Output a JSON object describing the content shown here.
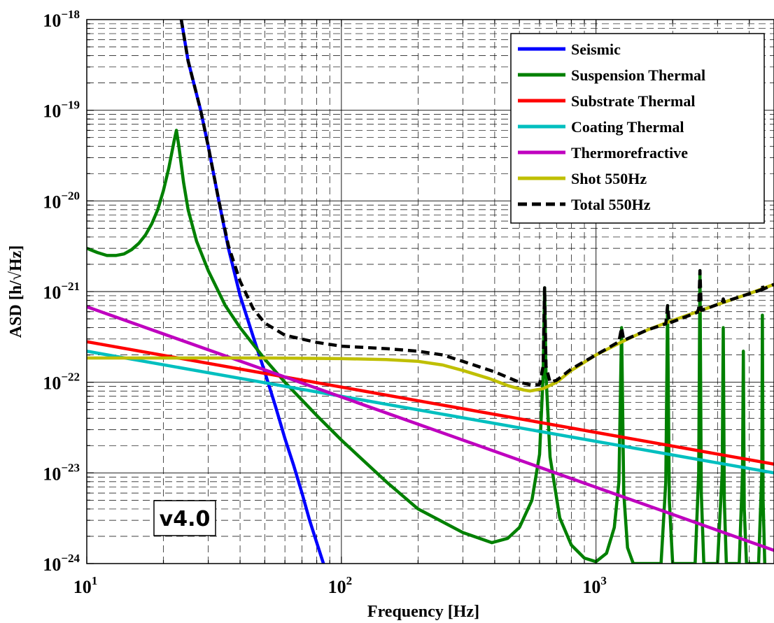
{
  "chart_data": {
    "type": "line",
    "xlabel": "Frequency [Hz]",
    "ylabel": "ASD [h/√Hz]",
    "xscale": "log",
    "yscale": "log",
    "xlim": [
      10,
      5000
    ],
    "ylim": [
      1e-24,
      1e-18
    ],
    "grid": true,
    "legend_position": "top-right",
    "x_tick_labels": [
      {
        "value": 10,
        "base": "10",
        "exp": "1"
      },
      {
        "value": 100,
        "base": "10",
        "exp": "2"
      },
      {
        "value": 1000,
        "base": "10",
        "exp": "3"
      }
    ],
    "y_tick_labels": [
      {
        "value": 1e-24,
        "base": "10",
        "exp": "−24"
      },
      {
        "value": 1e-23,
        "base": "10",
        "exp": "−23"
      },
      {
        "value": 1e-22,
        "base": "10",
        "exp": "−22"
      },
      {
        "value": 1e-21,
        "base": "10",
        "exp": "−21"
      },
      {
        "value": 1e-20,
        "base": "10",
        "exp": "−20"
      },
      {
        "value": 1e-19,
        "base": "10",
        "exp": "−19"
      },
      {
        "value": 1e-18,
        "base": "10",
        "exp": "−18"
      }
    ],
    "annotation": "v4.0",
    "series": [
      {
        "name": "Seismic",
        "color": "#0000ff",
        "dash": false,
        "points": [
          [
            23.5,
            1e-18
          ],
          [
            25,
            3.5e-19
          ],
          [
            28,
            1e-19
          ],
          [
            30,
            4e-20
          ],
          [
            33,
            1e-20
          ],
          [
            36,
            3e-21
          ],
          [
            40,
            9e-22
          ],
          [
            45,
            3.2e-22
          ],
          [
            50,
            1.3e-22
          ],
          [
            55,
            5.5e-23
          ],
          [
            60,
            2.4e-23
          ],
          [
            65,
            1.2e-23
          ],
          [
            70,
            6e-24
          ],
          [
            75,
            3e-24
          ],
          [
            80,
            1.7e-24
          ],
          [
            85,
            1e-24
          ]
        ]
      },
      {
        "name": "Suspension Thermal",
        "color": "#008000",
        "dash": false,
        "points": [
          [
            10,
            3e-21
          ],
          [
            11,
            2.7e-21
          ],
          [
            12,
            2.5e-21
          ],
          [
            13,
            2.5e-21
          ],
          [
            14,
            2.6e-21
          ],
          [
            15,
            2.9e-21
          ],
          [
            16,
            3.4e-21
          ],
          [
            17,
            4.2e-21
          ],
          [
            18,
            5.6e-21
          ],
          [
            19,
            8e-21
          ],
          [
            20,
            1.3e-20
          ],
          [
            21,
            2.3e-20
          ],
          [
            22,
            4.5e-20
          ],
          [
            22.5,
            6e-20
          ],
          [
            23,
            4e-20
          ],
          [
            24,
            1.6e-20
          ],
          [
            25,
            8e-21
          ],
          [
            27,
            3.6e-21
          ],
          [
            30,
            1.7e-21
          ],
          [
            35,
            7e-22
          ],
          [
            40,
            4e-22
          ],
          [
            50,
            1.8e-22
          ],
          [
            60,
            1e-22
          ],
          [
            80,
            4.3e-23
          ],
          [
            100,
            2.3e-23
          ],
          [
            150,
            8e-24
          ],
          [
            200,
            4e-24
          ],
          [
            300,
            2.2e-24
          ],
          [
            390,
            1.7e-24
          ],
          [
            450,
            1.9e-24
          ],
          [
            500,
            2.5e-24
          ],
          [
            560,
            5e-24
          ],
          [
            600,
            1.6e-23
          ],
          [
            620,
            1.2e-22
          ],
          [
            628,
            1.1e-21
          ],
          [
            636,
            1.2e-22
          ],
          [
            660,
            1.5e-23
          ],
          [
            720,
            3.2e-24
          ],
          [
            800,
            1.6e-24
          ],
          [
            900,
            1.15e-24
          ],
          [
            1000,
            1.05e-24
          ],
          [
            1100,
            1.3e-24
          ],
          [
            1180,
            2.5e-24
          ],
          [
            1230,
            8e-24
          ],
          [
            1260,
            4e-22
          ],
          [
            1285,
            6e-24
          ],
          [
            1330,
            1.5e-24
          ],
          [
            1400,
            1e-24
          ],
          [
            1800,
            1e-24
          ],
          [
            1880,
            8e-24
          ],
          [
            1910,
            7e-22
          ],
          [
            1940,
            5e-24
          ],
          [
            2000,
            1e-24
          ],
          [
            2450,
            1e-24
          ],
          [
            2530,
            1e-23
          ],
          [
            2560,
            1.7e-21
          ],
          [
            2590,
            6e-24
          ],
          [
            2650,
            1e-24
          ],
          [
            3000,
            1e-24
          ],
          [
            3130,
            1e-23
          ],
          [
            3160,
            4e-22
          ],
          [
            3190,
            5e-24
          ],
          [
            3250,
            1e-24
          ],
          [
            3650,
            1e-24
          ],
          [
            3760,
            1e-23
          ],
          [
            3790,
            2.2e-22
          ],
          [
            3820,
            4e-24
          ],
          [
            3900,
            1e-24
          ],
          [
            4350,
            1e-24
          ],
          [
            4480,
            1e-23
          ],
          [
            4500,
            5.5e-22
          ],
          [
            4530,
            5e-24
          ],
          [
            4600,
            1e-24
          ]
        ]
      },
      {
        "name": "Substrate Thermal",
        "color": "#ff0000",
        "dash": false,
        "points": [
          [
            10,
            2.8e-22
          ],
          [
            5000,
            1.25e-23
          ]
        ]
      },
      {
        "name": "Coating Thermal",
        "color": "#00bfbf",
        "dash": false,
        "points": [
          [
            10,
            2.2e-22
          ],
          [
            5000,
            1e-23
          ]
        ]
      },
      {
        "name": "Thermorefractive",
        "color": "#bf00bf",
        "dash": false,
        "points": [
          [
            10,
            6.8e-22
          ],
          [
            5000,
            1.4e-24
          ]
        ]
      },
      {
        "name": "Shot 550Hz",
        "color": "#bfbf00",
        "dash": false,
        "points": [
          [
            10,
            1.85e-22
          ],
          [
            50,
            1.85e-22
          ],
          [
            100,
            1.82e-22
          ],
          [
            150,
            1.78e-22
          ],
          [
            200,
            1.7e-22
          ],
          [
            250,
            1.55e-22
          ],
          [
            300,
            1.35e-22
          ],
          [
            380,
            1.1e-22
          ],
          [
            450,
            9.2e-23
          ],
          [
            520,
            8.2e-23
          ],
          [
            550,
            8e-23
          ],
          [
            620,
            8.5e-23
          ],
          [
            700,
            1e-22
          ],
          [
            800,
            1.35e-22
          ],
          [
            1000,
            2e-22
          ],
          [
            1300,
            2.9e-22
          ],
          [
            1600,
            3.8e-22
          ],
          [
            2000,
            4.8e-22
          ],
          [
            2500,
            6e-22
          ],
          [
            3000,
            7.2e-22
          ],
          [
            4000,
            9.5e-22
          ],
          [
            5000,
            1.2e-21
          ]
        ]
      },
      {
        "name": "Total 550Hz",
        "color": "#000000",
        "dash": true,
        "points": [
          [
            23.5,
            1e-18
          ],
          [
            25,
            3.5e-19
          ],
          [
            28,
            1e-19
          ],
          [
            30,
            4e-20
          ],
          [
            33,
            1e-20
          ],
          [
            36,
            3.2e-21
          ],
          [
            40,
            1.3e-21
          ],
          [
            45,
            6.5e-22
          ],
          [
            50,
            4.5e-22
          ],
          [
            60,
            3.3e-22
          ],
          [
            80,
            2.75e-22
          ],
          [
            100,
            2.5e-22
          ],
          [
            150,
            2.35e-22
          ],
          [
            200,
            2.2e-22
          ],
          [
            250,
            2e-22
          ],
          [
            300,
            1.7e-22
          ],
          [
            400,
            1.3e-22
          ],
          [
            500,
            1e-22
          ],
          [
            560,
            9.3e-23
          ],
          [
            600,
            9.5e-23
          ],
          [
            620,
            1.5e-22
          ],
          [
            628,
            1.1e-21
          ],
          [
            636,
            1.5e-22
          ],
          [
            660,
            1e-22
          ],
          [
            700,
            1.05e-22
          ],
          [
            800,
            1.4e-22
          ],
          [
            1000,
            2e-22
          ],
          [
            1230,
            2.8e-22
          ],
          [
            1260,
            4e-22
          ],
          [
            1285,
            2.9e-22
          ],
          [
            1600,
            3.8e-22
          ],
          [
            1880,
            4.4e-22
          ],
          [
            1910,
            7e-22
          ],
          [
            1940,
            4.5e-22
          ],
          [
            2500,
            5.9e-22
          ],
          [
            2530,
            6.5e-22
          ],
          [
            2560,
            1.7e-21
          ],
          [
            2590,
            6.2e-22
          ],
          [
            3000,
            7.2e-22
          ],
          [
            3130,
            7.6e-22
          ],
          [
            3160,
            8.3e-22
          ],
          [
            3190,
            7.7e-22
          ],
          [
            3790,
            9e-22
          ],
          [
            4480,
            1.05e-21
          ],
          [
            4500,
            1.2e-21
          ],
          [
            4530,
            1.06e-21
          ],
          [
            5000,
            1.2e-21
          ]
        ]
      }
    ]
  }
}
